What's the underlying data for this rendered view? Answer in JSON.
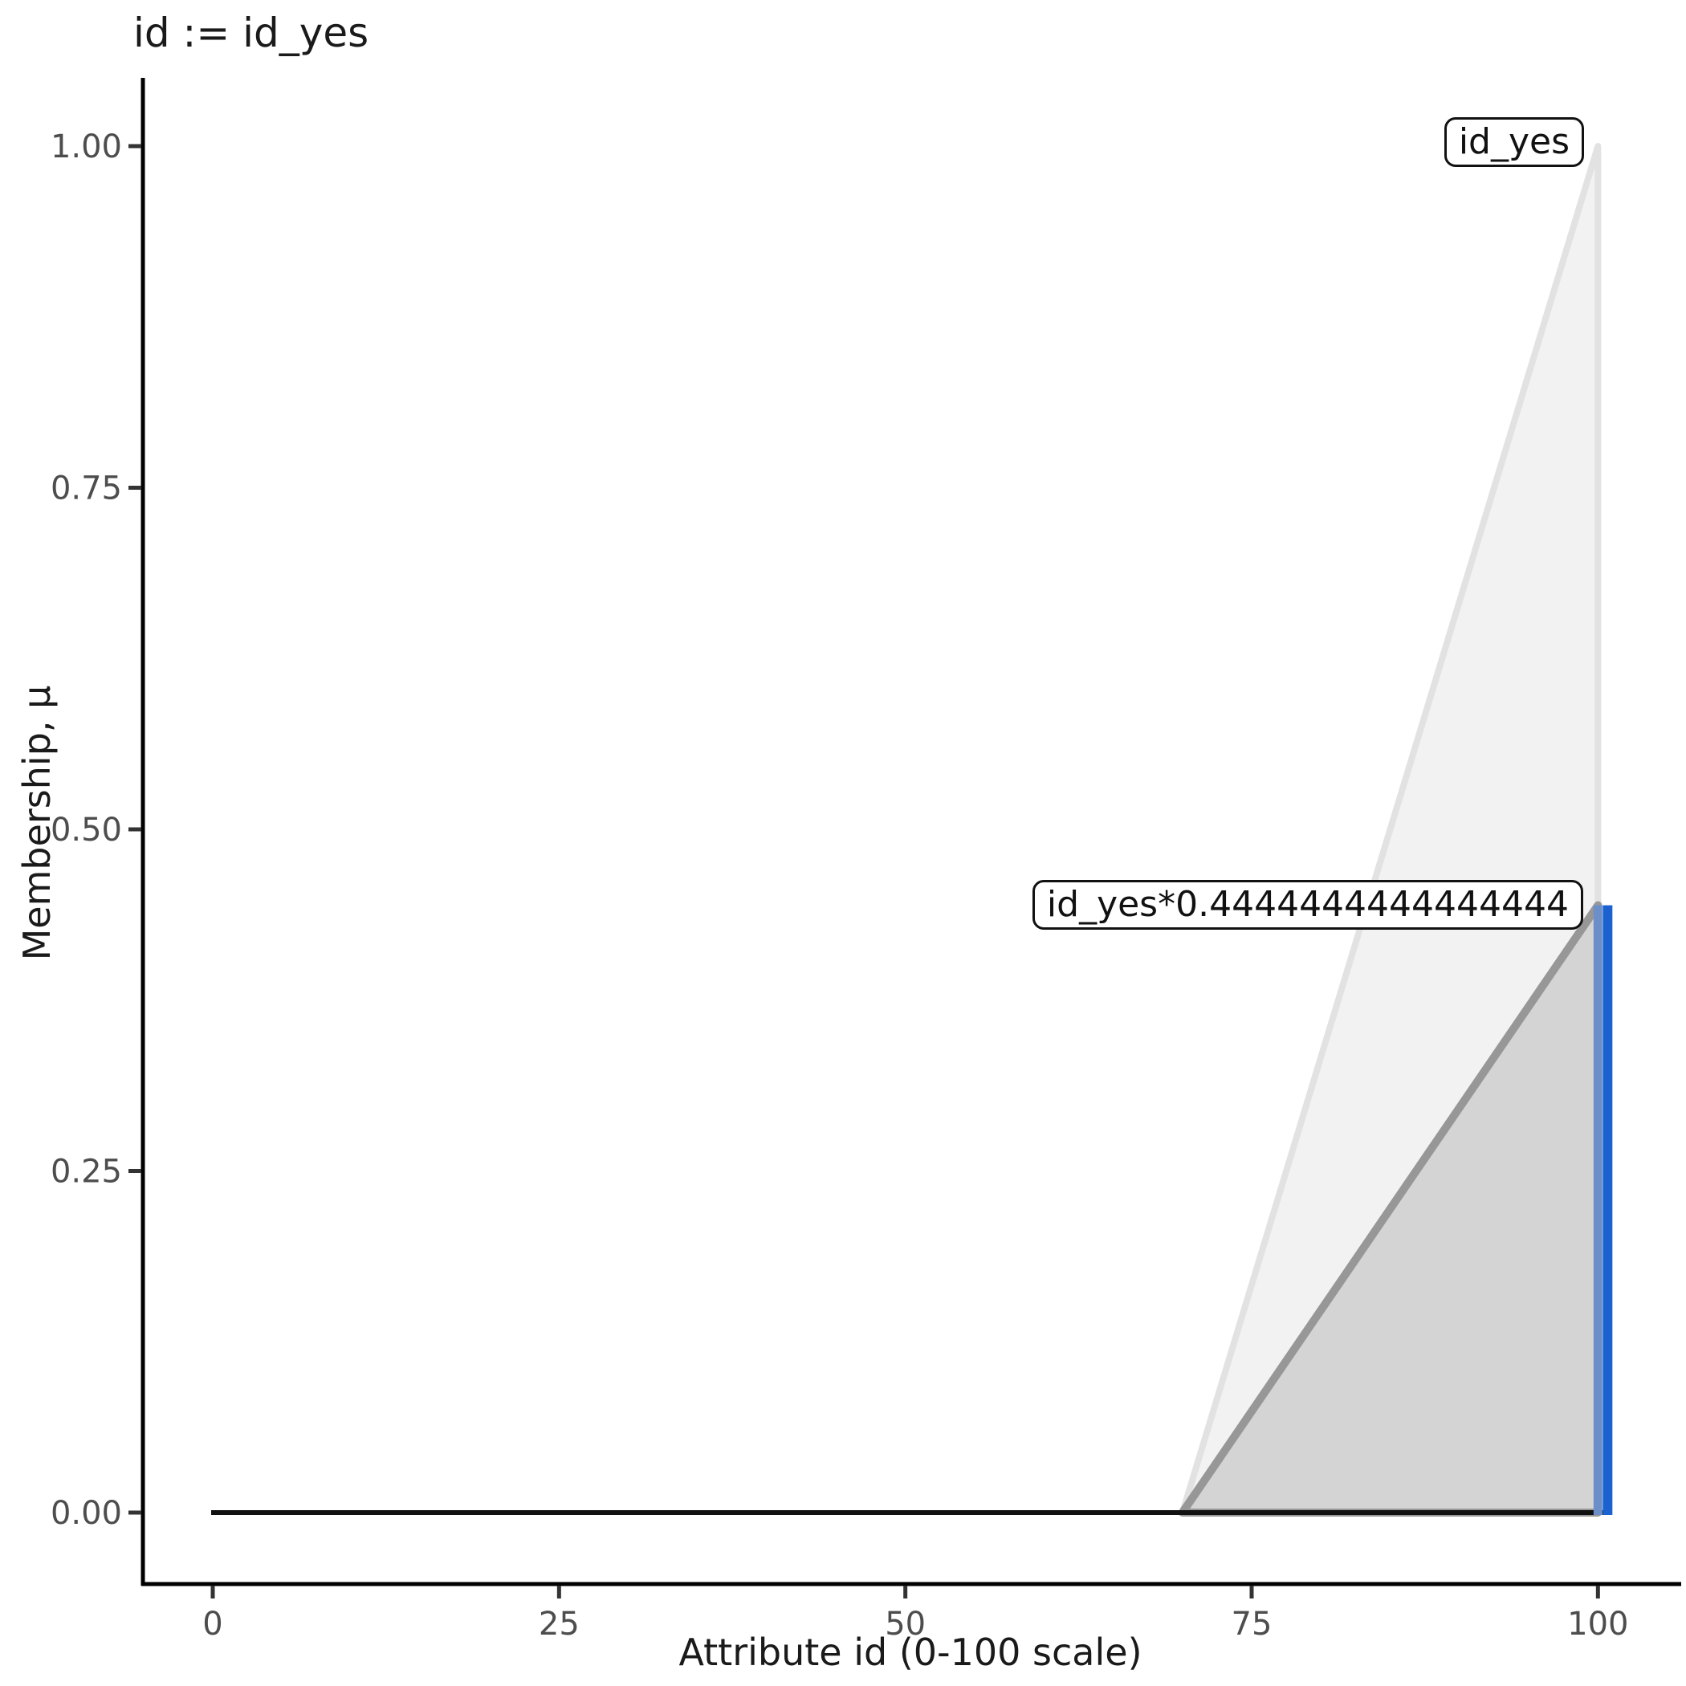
{
  "colors": {
    "background": "#ffffff",
    "axis_line": "#000000",
    "tick_mark": "#333333",
    "tick_label": "#4d4d4d",
    "text": "#1a1a1a",
    "baseline": "#111111",
    "membership_fill": "#f2f2f2",
    "membership_stroke": "#e2e2e2",
    "clipped_fill": "#d4d4d4",
    "clipped_stroke": "#979797",
    "blue": "#1b62d0",
    "blue_muted": "#6c8ec9"
  },
  "chart_data": {
    "type": "area",
    "title": "id := id_yes",
    "xlabel": "Attribute id (0-100 scale)",
    "ylabel": "Membership, μ",
    "xlim": [
      0,
      100
    ],
    "ylim": [
      0,
      1
    ],
    "grid": false,
    "legend_position": "none",
    "x_ticks": [
      "0",
      "25",
      "50",
      "75",
      "100"
    ],
    "x_tick_values": [
      0,
      25,
      50,
      75,
      100
    ],
    "y_ticks": [
      "0.00",
      "0.25",
      "0.50",
      "0.75",
      "1.00"
    ],
    "y_tick_values": [
      0,
      0.25,
      0.5,
      0.75,
      1
    ],
    "series": [
      {
        "name": "id_yes",
        "description": "full membership function triangle",
        "points": [
          [
            70,
            0
          ],
          [
            100,
            1
          ],
          [
            100,
            0
          ]
        ],
        "fill": "#f2f2f2",
        "stroke": "#e2e2e2"
      },
      {
        "name": "id_yes*0.4444444444444444",
        "description": "membership clipped at activation 0.4444444444444444",
        "points": [
          [
            70,
            0
          ],
          [
            100,
            0.4444444444444444
          ],
          [
            100,
            0
          ]
        ],
        "fill": "#d4d4d4",
        "stroke": "#979797"
      }
    ],
    "baseline": {
      "x0": 0,
      "x1": 100,
      "y": 0
    },
    "vline": {
      "x": 100,
      "y0": 0,
      "y1": 0.4444444444444444
    },
    "annotations": [
      {
        "label": "id_yes",
        "x": 100,
        "y": 1
      },
      {
        "label": "id_yes*0.4444444444444444",
        "x": 100,
        "y": 0.4444444444444444
      }
    ]
  }
}
